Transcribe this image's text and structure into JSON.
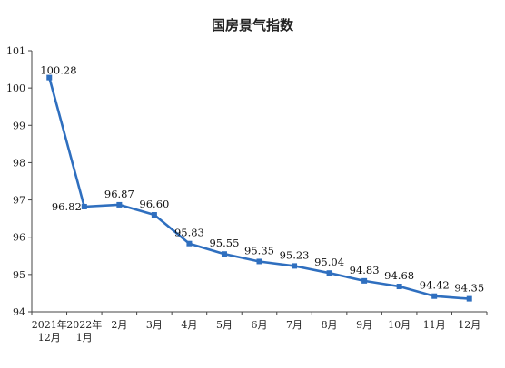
{
  "chart_data": {
    "type": "line",
    "title": "国房景气指数",
    "xlabel": "",
    "ylabel": "",
    "categories": [
      [
        "2021年",
        "12月"
      ],
      [
        "2022年",
        "1月"
      ],
      [
        "2月"
      ],
      [
        "3月"
      ],
      [
        "4月"
      ],
      [
        "5月"
      ],
      [
        "6月"
      ],
      [
        "7月"
      ],
      [
        "8月"
      ],
      [
        "9月"
      ],
      [
        "10月"
      ],
      [
        "11月"
      ],
      [
        "12月"
      ]
    ],
    "values": [
      100.28,
      96.82,
      96.87,
      96.6,
      95.83,
      95.55,
      95.35,
      95.23,
      95.04,
      94.83,
      94.68,
      94.42,
      94.35
    ],
    "data_labels": [
      "100.28",
      "96.82",
      "96.87",
      "96.60",
      "95.83",
      "95.55",
      "95.35",
      "95.23",
      "95.04",
      "94.83",
      "94.68",
      "94.42",
      "94.35"
    ],
    "ylim": [
      94,
      101
    ],
    "yticks": [
      94,
      95,
      96,
      97,
      98,
      99,
      100,
      101
    ],
    "grid": false,
    "legend": "none",
    "series_color": "#2f6fbf"
  }
}
